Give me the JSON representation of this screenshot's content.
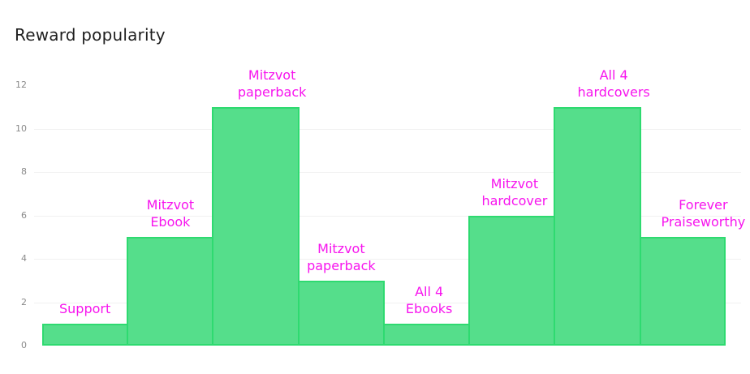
{
  "title": "Reward popularity",
  "colors": {
    "background": "#ffffff",
    "title_text": "#1f1f1f",
    "bar_fill": "#55de8b",
    "bar_border": "#2eda70",
    "bar_label_text": "#f714ee",
    "gridline": "#f1f1f1",
    "tick_text": "#8a8a8a"
  },
  "chart_data": {
    "type": "bar",
    "title": "Reward popularity",
    "xlabel": "",
    "ylabel": "",
    "categories": [
      "Support",
      "Mitzvot Ebook",
      "Mitzvot paperback",
      "Mitzvot paperback",
      "All 4 Ebooks",
      "Mitzvot hardcover",
      "All 4 hardcovers",
      "Forever Praiseworthy"
    ],
    "category_lines": [
      [
        "Support"
      ],
      [
        "Mitzvot",
        "Ebook"
      ],
      [
        "Mitzvot",
        "paperback"
      ],
      [
        "Mitzvot",
        "paperback"
      ],
      [
        "All 4",
        "Ebooks"
      ],
      [
        "Mitzvot",
        "hardcover"
      ],
      [
        "All 4",
        "hardcovers"
      ],
      [
        "Forever",
        "Praiseworthy"
      ]
    ],
    "values": [
      1,
      5,
      11,
      3,
      1,
      6,
      11,
      5
    ],
    "ylim": [
      0,
      12
    ],
    "y_ticks": [
      0,
      2,
      4,
      6,
      8,
      10,
      12
    ],
    "grid_ticks": [
      2,
      4,
      6,
      8,
      10
    ],
    "grid": "horizontal",
    "legend": "none",
    "bar_style": "adjacent-histogram",
    "label_position": "above-bars"
  }
}
